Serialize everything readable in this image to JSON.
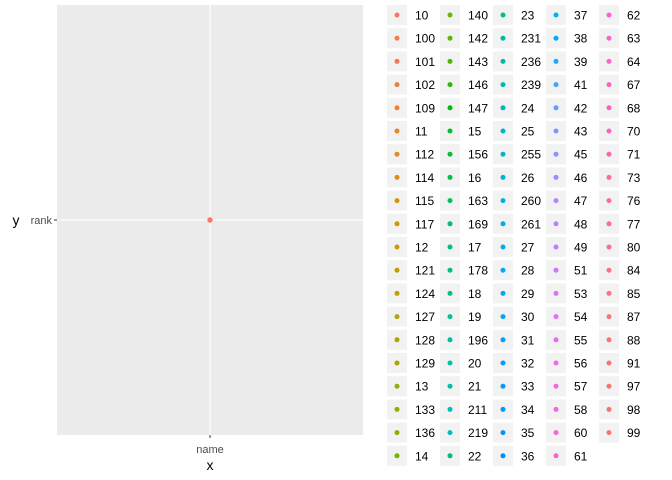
{
  "chart_data": {
    "type": "scatter",
    "x_title": "x",
    "y_title": "y",
    "x_categories": [
      "name"
    ],
    "y_categories": [
      "rank"
    ],
    "points": [
      {
        "x": "name",
        "y": "rank",
        "series": "10",
        "color": "#F8766D"
      }
    ],
    "grid": true,
    "legend_placement": "right",
    "legend": [
      {
        "label": "10",
        "color": "#F8766D"
      },
      {
        "label": "100",
        "color": "#F67B55"
      },
      {
        "label": "101",
        "color": "#F3784F"
      },
      {
        "label": "102",
        "color": "#F07D44"
      },
      {
        "label": "109",
        "color": "#EC823A"
      },
      {
        "label": "11",
        "color": "#E8862F"
      },
      {
        "label": "112",
        "color": "#E38A22"
      },
      {
        "label": "114",
        "color": "#DE8E15"
      },
      {
        "label": "115",
        "color": "#D89205"
      },
      {
        "label": "117",
        "color": "#D29600"
      },
      {
        "label": "12",
        "color": "#CB9A00"
      },
      {
        "label": "121",
        "color": "#C49D00"
      },
      {
        "label": "124",
        "color": "#BDA000"
      },
      {
        "label": "127",
        "color": "#B5A300"
      },
      {
        "label": "128",
        "color": "#ADA600"
      },
      {
        "label": "129",
        "color": "#A4A900"
      },
      {
        "label": "13",
        "color": "#9BAC00"
      },
      {
        "label": "133",
        "color": "#91AE00"
      },
      {
        "label": "136",
        "color": "#86B100"
      },
      {
        "label": "14",
        "color": "#7AB300"
      },
      {
        "label": "140",
        "color": "#6DB500"
      },
      {
        "label": "142",
        "color": "#5DB700"
      },
      {
        "label": "143",
        "color": "#49B900"
      },
      {
        "label": "146",
        "color": "#2CBA00"
      },
      {
        "label": "147",
        "color": "#00BC10"
      },
      {
        "label": "15",
        "color": "#00BD2C"
      },
      {
        "label": "156",
        "color": "#00BE3E"
      },
      {
        "label": "16",
        "color": "#00BF4D"
      },
      {
        "label": "163",
        "color": "#00C05A"
      },
      {
        "label": "169",
        "color": "#00C066"
      },
      {
        "label": "17",
        "color": "#00C171"
      },
      {
        "label": "178",
        "color": "#00C17C"
      },
      {
        "label": "18",
        "color": "#00C186"
      },
      {
        "label": "19",
        "color": "#00C190"
      },
      {
        "label": "196",
        "color": "#00C19A"
      },
      {
        "label": "20",
        "color": "#00C0A3"
      },
      {
        "label": "21",
        "color": "#00C0AC"
      },
      {
        "label": "211",
        "color": "#00BFB5"
      },
      {
        "label": "219",
        "color": "#00BEBE"
      },
      {
        "label": "22",
        "color": "#00BD7F"
      },
      {
        "label": "23",
        "color": "#00BC8E"
      },
      {
        "label": "231",
        "color": "#00BB9A"
      },
      {
        "label": "236",
        "color": "#00BAA5"
      },
      {
        "label": "239",
        "color": "#00B9AF"
      },
      {
        "label": "24",
        "color": "#00B8B9"
      },
      {
        "label": "25",
        "color": "#00B6C2"
      },
      {
        "label": "255",
        "color": "#00B5CB"
      },
      {
        "label": "26",
        "color": "#00B3D3"
      },
      {
        "label": "260",
        "color": "#00B1DB"
      },
      {
        "label": "261",
        "color": "#00AFE3"
      },
      {
        "label": "27",
        "color": "#00ADEA"
      },
      {
        "label": "28",
        "color": "#00ABF1"
      },
      {
        "label": "29",
        "color": "#00A8F7"
      },
      {
        "label": "30",
        "color": "#00A5FC"
      },
      {
        "label": "31",
        "color": "#00A2FF"
      },
      {
        "label": "32",
        "color": "#009FFF"
      },
      {
        "label": "33",
        "color": "#009BFF"
      },
      {
        "label": "34",
        "color": "#0097FF"
      },
      {
        "label": "35",
        "color": "#0093FF"
      },
      {
        "label": "36",
        "color": "#008FFF"
      },
      {
        "label": "37",
        "color": "#00B0F6"
      },
      {
        "label": "38",
        "color": "#00ABFD"
      },
      {
        "label": "39",
        "color": "#1FA6FF"
      },
      {
        "label": "41",
        "color": "#47A0FF"
      },
      {
        "label": "42",
        "color": "#619CFF"
      },
      {
        "label": "43",
        "color": "#7997FF"
      },
      {
        "label": "45",
        "color": "#8C91FF"
      },
      {
        "label": "46",
        "color": "#9D8BFF"
      },
      {
        "label": "47",
        "color": "#AC85FF"
      },
      {
        "label": "48",
        "color": "#B980FF"
      },
      {
        "label": "49",
        "color": "#C57BFF"
      },
      {
        "label": "51",
        "color": "#D077FF"
      },
      {
        "label": "53",
        "color": "#D973FC"
      },
      {
        "label": "54",
        "color": "#E16FF7"
      },
      {
        "label": "55",
        "color": "#E76BF3"
      },
      {
        "label": "56",
        "color": "#ED68ED"
      },
      {
        "label": "57",
        "color": "#F166E7"
      },
      {
        "label": "58",
        "color": "#F565E0"
      },
      {
        "label": "60",
        "color": "#F864D9"
      },
      {
        "label": "61",
        "color": "#FA63D1"
      },
      {
        "label": "62",
        "color": "#FB61D7"
      },
      {
        "label": "63",
        "color": "#FC61D0"
      },
      {
        "label": "64",
        "color": "#FD61C9"
      },
      {
        "label": "67",
        "color": "#FE61C1"
      },
      {
        "label": "68",
        "color": "#FF62BC"
      },
      {
        "label": "70",
        "color": "#FF63B5"
      },
      {
        "label": "71",
        "color": "#FF64AE"
      },
      {
        "label": "73",
        "color": "#FF66A7"
      },
      {
        "label": "76",
        "color": "#FF68A0"
      },
      {
        "label": "77",
        "color": "#FE6A99"
      },
      {
        "label": "80",
        "color": "#FD6C91"
      },
      {
        "label": "84",
        "color": "#FC6E8A"
      },
      {
        "label": "85",
        "color": "#FB7083"
      },
      {
        "label": "87",
        "color": "#FA727C"
      },
      {
        "label": "88",
        "color": "#F87475"
      },
      {
        "label": "91",
        "color": "#F7756F"
      },
      {
        "label": "97",
        "color": "#F67570"
      },
      {
        "label": "98",
        "color": "#F7746E"
      },
      {
        "label": "99",
        "color": "#F8746C"
      }
    ]
  }
}
